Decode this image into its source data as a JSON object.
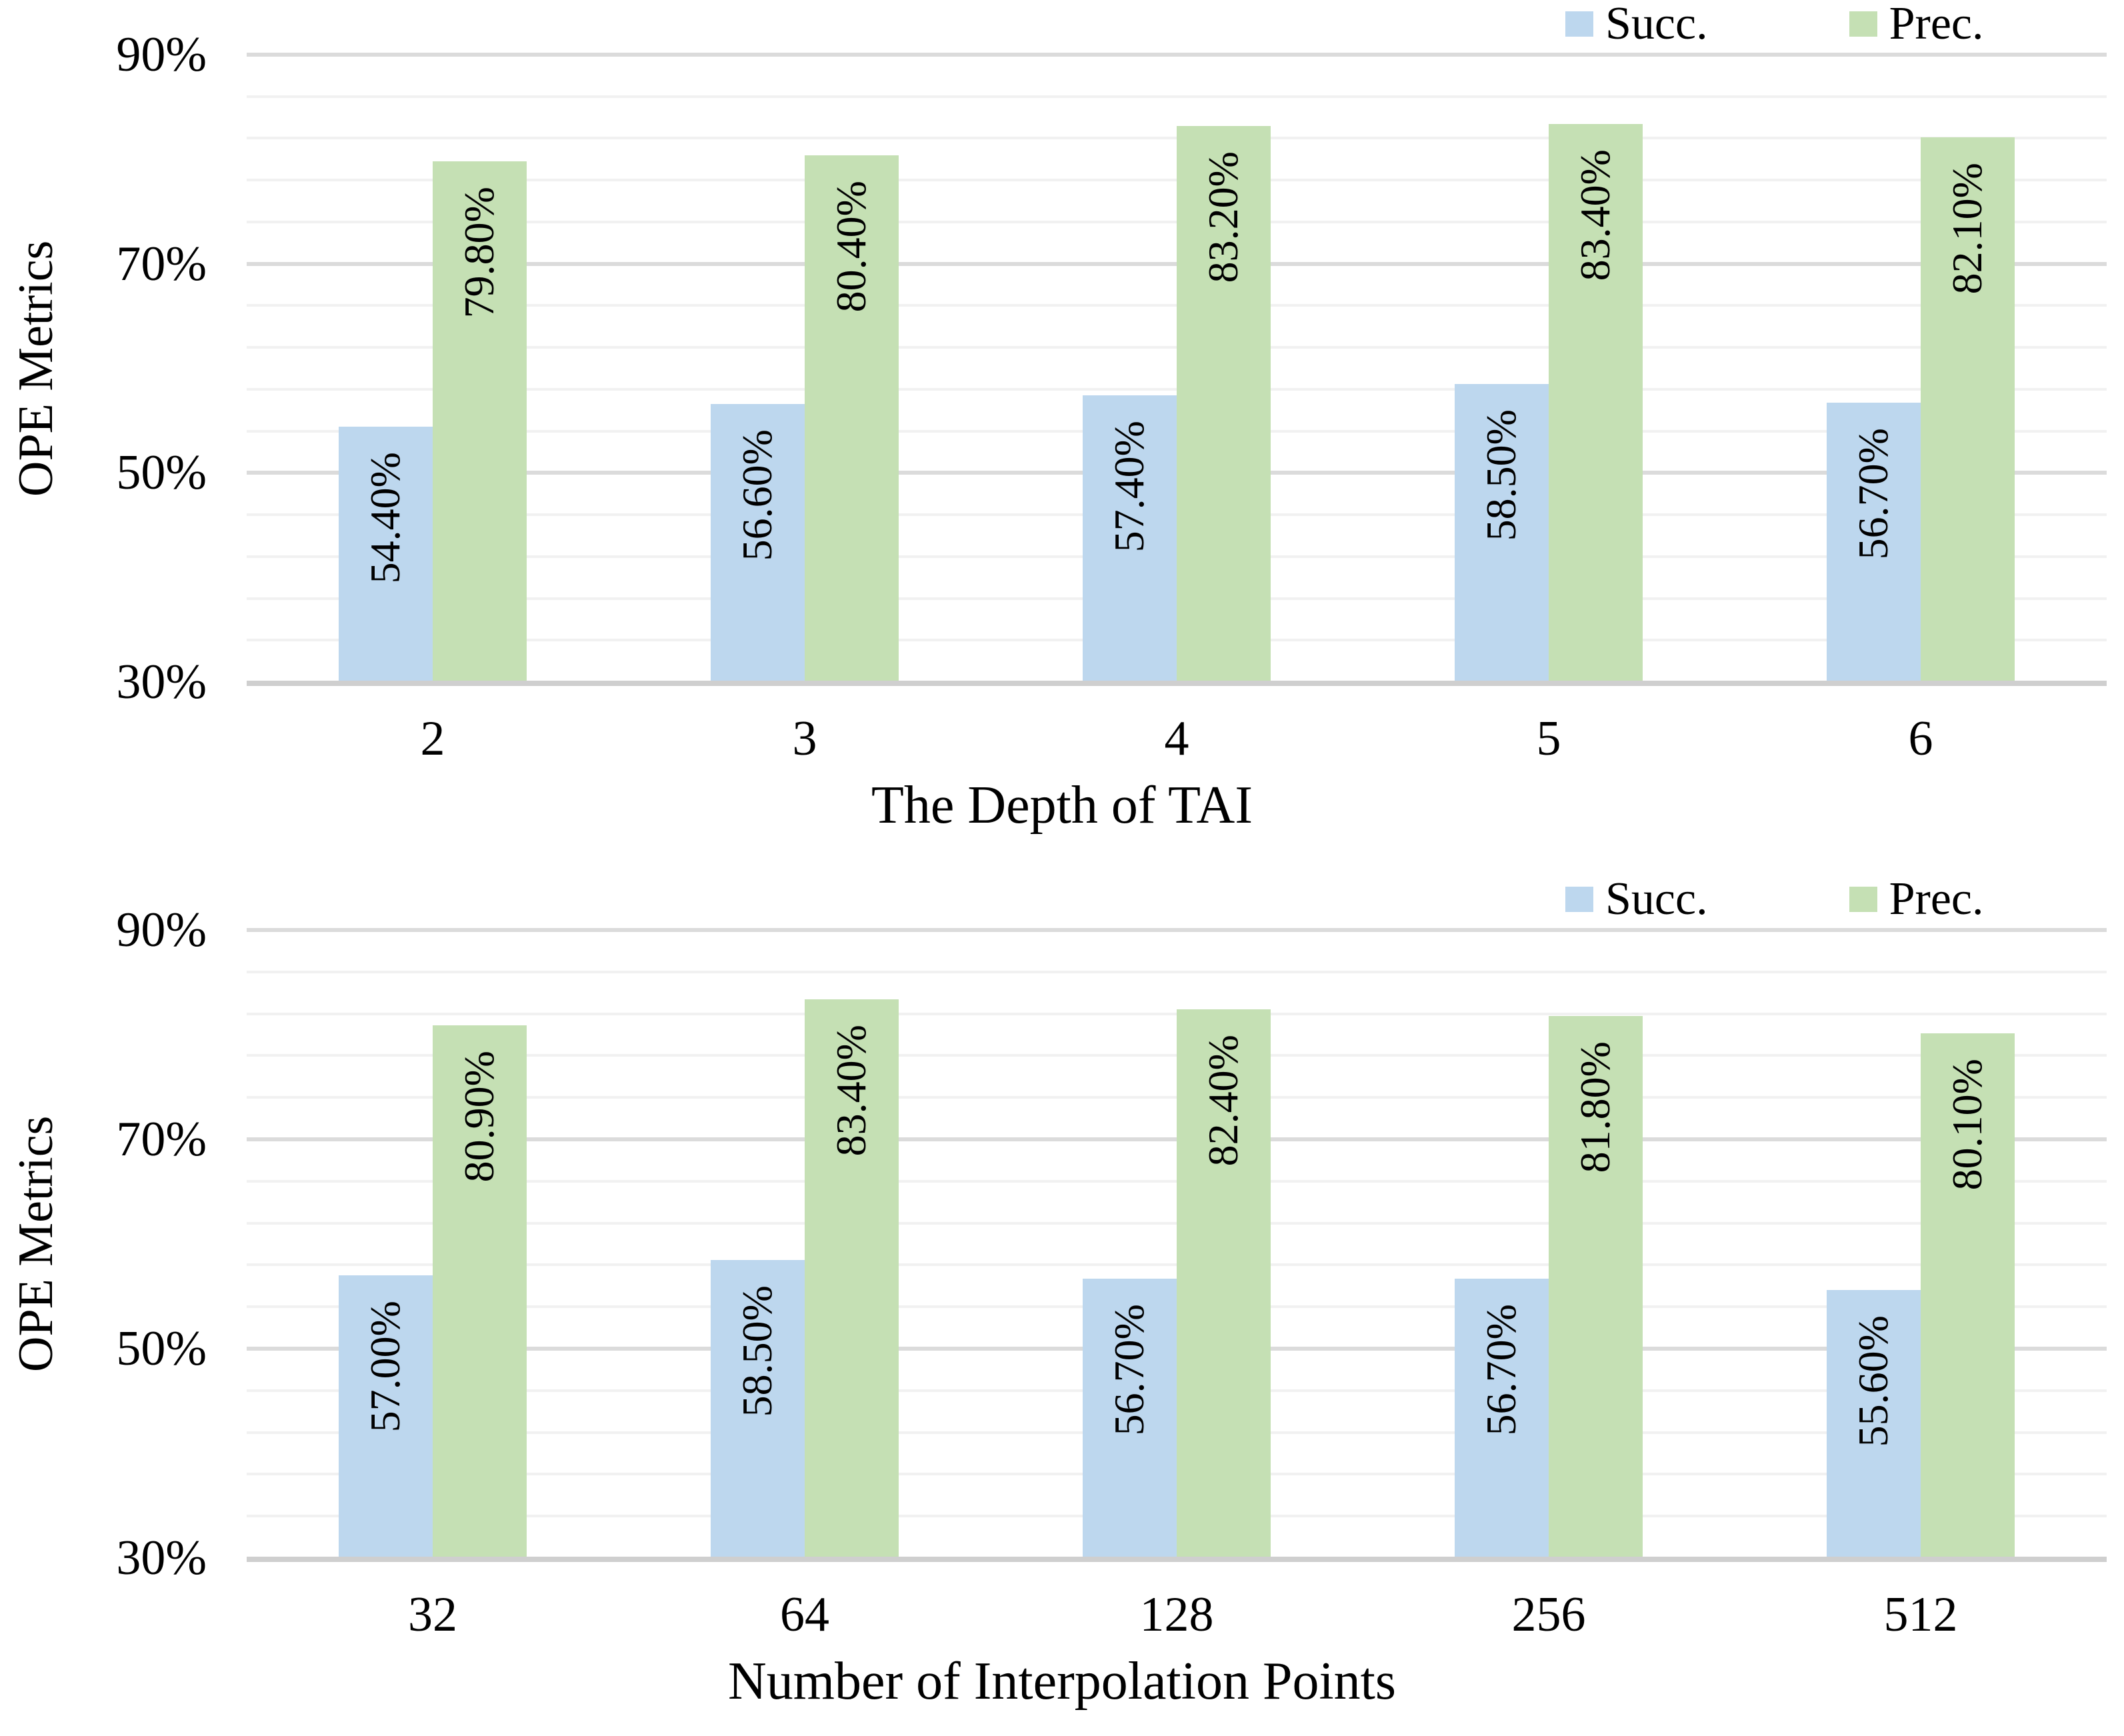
{
  "page": {
    "background": "#FFFFFF"
  },
  "palette": {
    "succ": "#BDD7EE",
    "prec": "#C5E0B4",
    "grid_major": "#DBDBDB",
    "grid_minor": "#F1F1F1",
    "axis_line": "#CFCFCF",
    "text": "#000000"
  },
  "chart_data": [
    {
      "type": "bar",
      "title": "",
      "categories": [
        "2",
        "3",
        "4",
        "5",
        "6"
      ],
      "series": [
        {
          "name": "Succ.",
          "color_key": "succ",
          "values": [
            54.4,
            56.6,
            57.4,
            58.5,
            56.7
          ],
          "labels": [
            "54.40%",
            "56.60%",
            "57.40%",
            "58.50%",
            "56.70%"
          ]
        },
        {
          "name": "Prec.",
          "color_key": "prec",
          "values": [
            79.8,
            80.4,
            83.2,
            83.4,
            82.1
          ],
          "labels": [
            "79.80%",
            "80.40%",
            "83.20%",
            "83.40%",
            "82.10%"
          ]
        }
      ],
      "xlabel": "The Depth of TAI",
      "ylabel": "OPE Metrics",
      "ylim": [
        30,
        90
      ],
      "ymajor_step": 20,
      "yminor_step": 4,
      "ytick_labels": [
        "30%",
        "50%",
        "70%",
        "90%"
      ],
      "legend": [
        "Succ.",
        "Prec."
      ],
      "legend_position": "top-right",
      "grid": "horizontal",
      "bar_labels_rotation": -90,
      "bar_labels_position": "inside-end"
    },
    {
      "type": "bar",
      "title": "",
      "categories": [
        "32",
        "64",
        "128",
        "256",
        "512"
      ],
      "series": [
        {
          "name": "Succ.",
          "color_key": "succ",
          "values": [
            57.0,
            58.5,
            56.7,
            56.7,
            55.6
          ],
          "labels": [
            "57.00%",
            "58.50%",
            "56.70%",
            "56.70%",
            "55.60%"
          ]
        },
        {
          "name": "Prec.",
          "color_key": "prec",
          "values": [
            80.9,
            83.4,
            82.4,
            81.8,
            80.1
          ],
          "labels": [
            "80.90%",
            "83.40%",
            "82.40%",
            "81.80%",
            "80.10%"
          ]
        }
      ],
      "xlabel": "Number of Interpolation Points",
      "ylabel": "OPE Metrics",
      "ylim": [
        30,
        90
      ],
      "ymajor_step": 20,
      "yminor_step": 4,
      "ytick_labels": [
        "30%",
        "50%",
        "70%",
        "90%"
      ],
      "legend": [
        "Succ.",
        "Prec."
      ],
      "legend_position": "top-right",
      "grid": "horizontal",
      "bar_labels_rotation": -90,
      "bar_labels_position": "inside-end"
    }
  ]
}
